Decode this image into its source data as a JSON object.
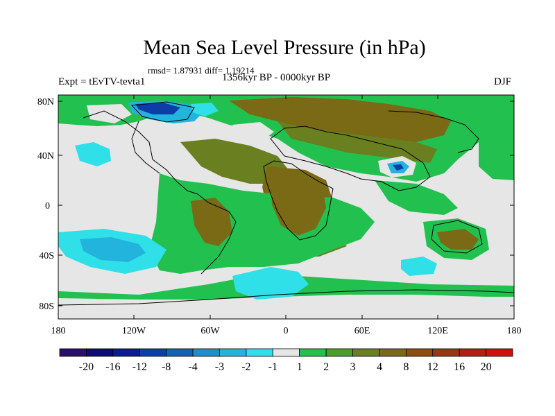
{
  "title": "Mean Sea Level Pressure (in hPa)",
  "stats_line": "rmsd= 1.87931 diff= 1.19214",
  "subtitle": "1356kyr BP - 0000kyr BP",
  "experiment": "Expt = tEvTV-tevta1",
  "season": "DJF",
  "lat_ticks": [
    "80N",
    "40N",
    "0",
    "40S",
    "80S"
  ],
  "lon_ticks": [
    "180",
    "120W",
    "60W",
    "0",
    "60E",
    "120E",
    "180"
  ],
  "colorbar": {
    "labels": [
      "-20",
      "-16",
      "-12",
      "-8",
      "-4",
      "-3",
      "-2",
      "-1",
      "1",
      "2",
      "3",
      "4",
      "8",
      "12",
      "16",
      "20"
    ],
    "colors": [
      "#2a0f6b",
      "#0b0b7a",
      "#0b1a99",
      "#0d3ea8",
      "#1262b8",
      "#1a8fcf",
      "#23b4de",
      "#2fe0e8",
      "#e6e6e6",
      "#22c14f",
      "#4f9b2f",
      "#6a7f1f",
      "#7a6a16",
      "#8a4d14",
      "#9c3516",
      "#b21d15",
      "#d01010"
    ]
  },
  "map_colors": {
    "ocean_neutral": "#e6e6e6",
    "green": "#22c14f",
    "dark_green": "#4f9b2f",
    "olive": "#6a7f1f",
    "brown": "#7a6a16",
    "cyan": "#2fe0e8",
    "light_blue": "#23b4de",
    "blue": "#1a8fcf",
    "navy": "#0d3ea8"
  }
}
